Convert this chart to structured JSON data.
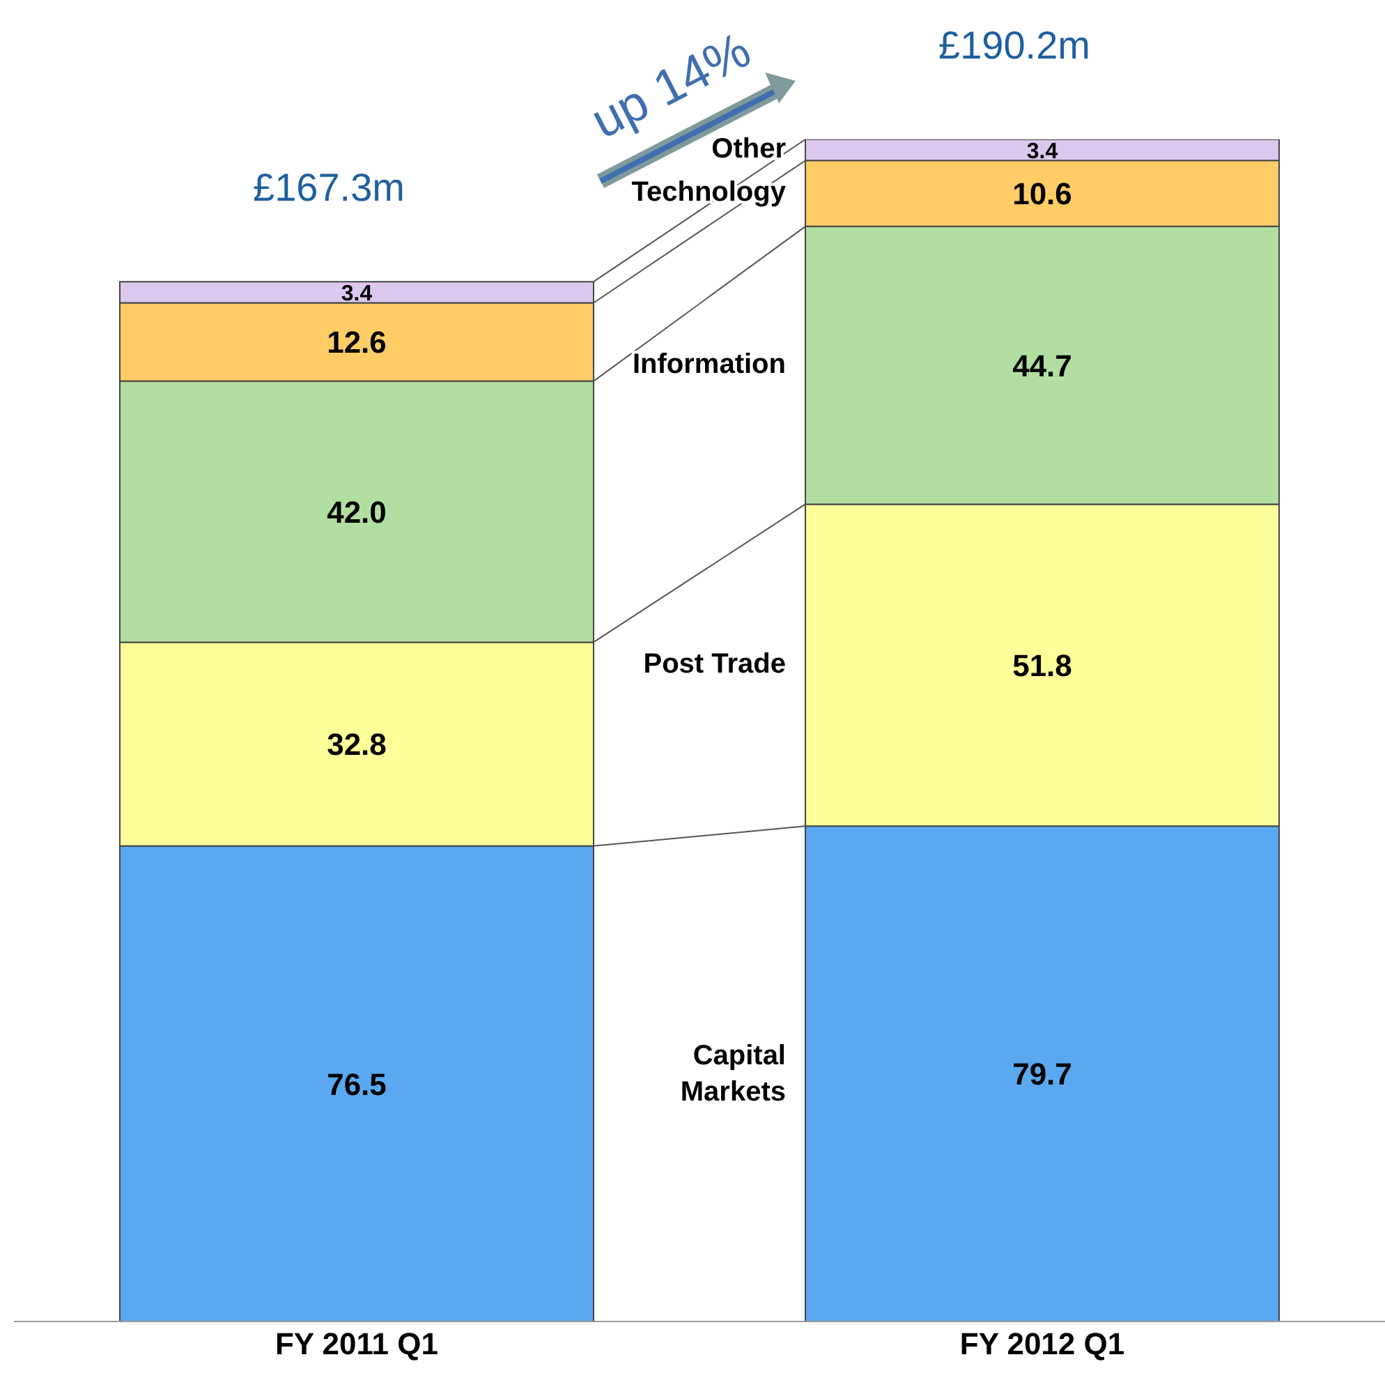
{
  "chart_data": {
    "type": "bar",
    "stacked": true,
    "categories": [
      "FY 2011 Q1",
      "FY 2012 Q1"
    ],
    "series": [
      {
        "name": "Capital Markets",
        "color": "#5aa8f0",
        "values": [
          76.5,
          79.7
        ],
        "value_labels": [
          "76.5",
          "79.7"
        ]
      },
      {
        "name": "Post Trade",
        "color": "#ffff99",
        "values": [
          32.8,
          51.8
        ],
        "value_labels": [
          "32.8",
          "51.8"
        ]
      },
      {
        "name": "Information",
        "color": "#b2dea2",
        "values": [
          42.0,
          44.7
        ],
        "value_labels": [
          "42.0",
          "44.7"
        ]
      },
      {
        "name": "Technology",
        "color": "#ffcc66",
        "values": [
          12.6,
          10.6
        ],
        "value_labels": [
          "12.6",
          "10.6"
        ]
      },
      {
        "name": "Other",
        "color": "#dcc8ee",
        "values": [
          3.4,
          3.4
        ],
        "value_labels": [
          "3.4",
          "3.4"
        ]
      }
    ],
    "totals": [
      "£167.3m",
      "£190.2m"
    ],
    "annotations": [
      "up 14%"
    ]
  }
}
